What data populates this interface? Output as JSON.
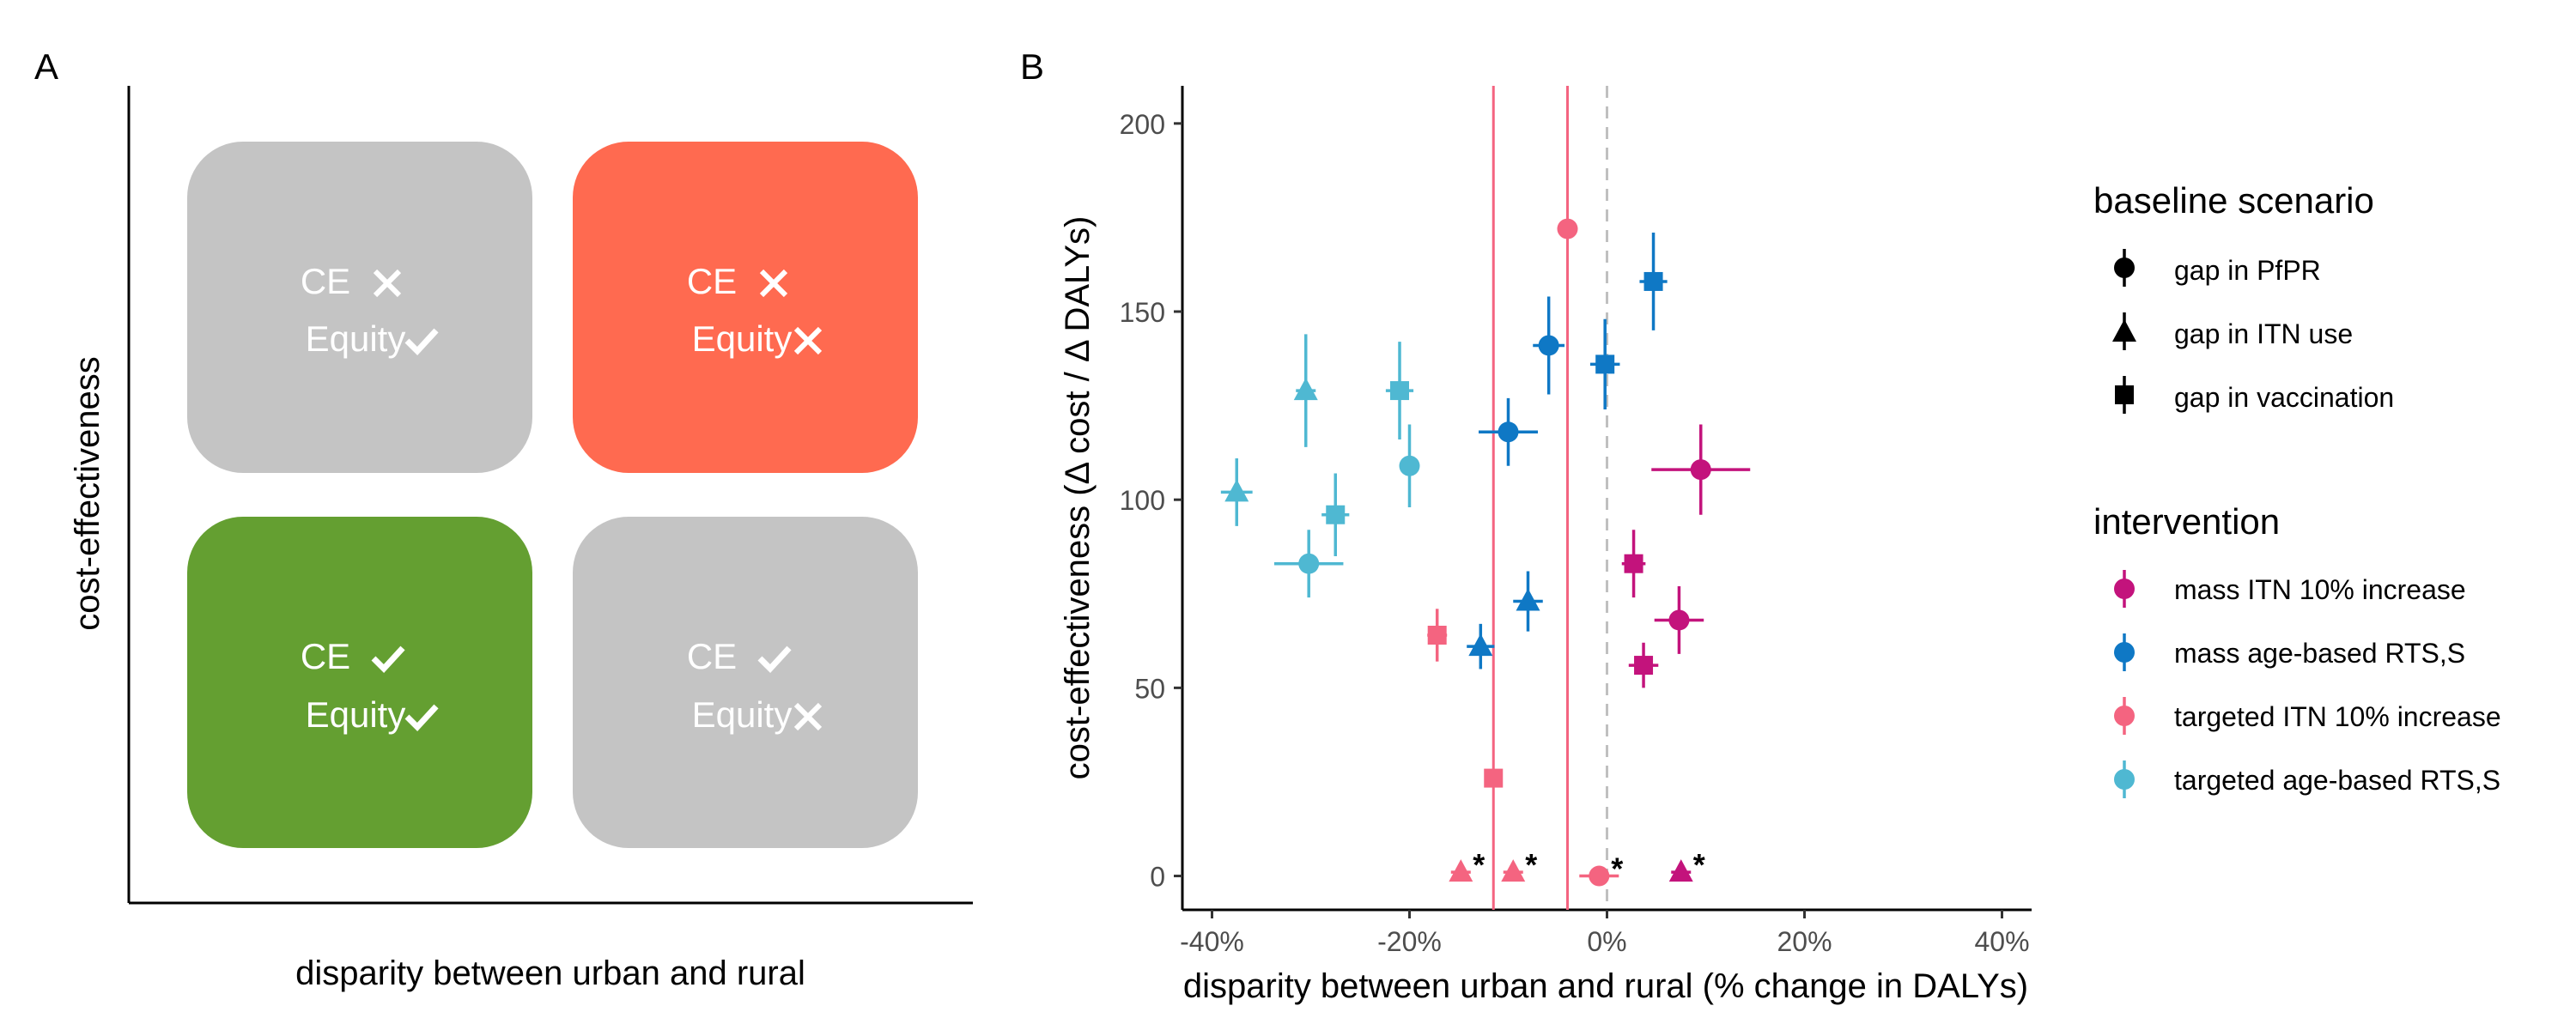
{
  "panel_a": {
    "label": "A",
    "ylabel": "cost-effectiveness",
    "xlabel": "disparity between urban and rural",
    "quadrants": [
      {
        "ce": "CE",
        "ce_mark": "cross",
        "equity": "Equity",
        "equity_mark": "check",
        "color": "#c4c4c4"
      },
      {
        "ce": "CE",
        "ce_mark": "cross",
        "equity": "Equity",
        "equity_mark": "cross",
        "color": "#ff6a50"
      },
      {
        "ce": "CE",
        "ce_mark": "check",
        "equity": "Equity",
        "equity_mark": "check",
        "color": "#649f31"
      },
      {
        "ce": "CE",
        "ce_mark": "check",
        "equity": "Equity",
        "equity_mark": "cross",
        "color": "#c4c4c4"
      }
    ]
  },
  "panel_b": {
    "label": "B",
    "xticks": [
      "-40%",
      "-20%",
      "0%",
      "20%",
      "40%"
    ],
    "yticks": [
      "0",
      "50",
      "100",
      "150",
      "200"
    ],
    "legend": {
      "baseline_title": "baseline scenario",
      "baseline_items": [
        {
          "label": "gap in PfPR",
          "shape": "circle"
        },
        {
          "label": "gap in ITN use",
          "shape": "triangle"
        },
        {
          "label": "gap in vaccination",
          "shape": "square"
        }
      ],
      "intervention_title": "intervention",
      "intervention_items": [
        {
          "label": "mass ITN 10% increase",
          "color": "#c3137c"
        },
        {
          "label": "mass age-based RTS,S",
          "color": "#0f78c5"
        },
        {
          "label": "targeted ITN 10% increase",
          "color": "#f46480"
        },
        {
          "label": "targeted age-based RTS,S",
          "color": "#4fb8d2"
        }
      ]
    },
    "annotation": "*"
  },
  "chart_data": {
    "type": "scatter",
    "xlabel": "disparity between urban and rural (% change in DALYs)",
    "ylabel": "cost-effectiveness (Δ cost / Δ DALYs)",
    "xlim": [
      -43,
      43
    ],
    "ylim": [
      -9,
      210
    ],
    "x_unit": "%",
    "grid": false,
    "legend_position": "right",
    "reference_lines": [
      {
        "orientation": "vertical",
        "x": 0,
        "style": "dashed",
        "color": "#c0c0c0"
      },
      {
        "orientation": "vertical",
        "x": -11.5,
        "style": "solid",
        "color": "#f46480"
      },
      {
        "orientation": "vertical",
        "x": -4,
        "style": "solid",
        "color": "#f46480"
      }
    ],
    "series": [
      {
        "name": "mass ITN 10% increase",
        "color": "#c3137c",
        "points": [
          {
            "shape": "circle",
            "x": 9.5,
            "y": 108,
            "xerr": 5,
            "yerr": 12
          },
          {
            "shape": "circle",
            "x": 7.3,
            "y": 68,
            "xerr": 2.5,
            "yerr": 9
          },
          {
            "shape": "square",
            "x": 2.7,
            "y": 83,
            "xerr": 1.2,
            "yerr": 9
          },
          {
            "shape": "square",
            "x": 3.7,
            "y": 56,
            "xerr": 1.5,
            "yerr": 6
          },
          {
            "shape": "triangle",
            "x": 7.5,
            "y": 1,
            "xerr": 1,
            "yerr": 0,
            "flag": "*"
          }
        ]
      },
      {
        "name": "mass age-based RTS,S",
        "color": "#0f78c5",
        "points": [
          {
            "shape": "circle",
            "x": -10,
            "y": 118,
            "xerr": 3,
            "yerr": 9
          },
          {
            "shape": "circle",
            "x": -5.9,
            "y": 141,
            "xerr": 1.6,
            "yerr": 13
          },
          {
            "shape": "square",
            "x": -0.2,
            "y": 136,
            "xerr": 1.5,
            "yerr": 12
          },
          {
            "shape": "square",
            "x": 4.7,
            "y": 158,
            "xerr": 1.4,
            "yerr": 13
          },
          {
            "shape": "triangle",
            "x": -8,
            "y": 73,
            "xerr": 1.5,
            "yerr": 8
          },
          {
            "shape": "triangle",
            "x": -12.8,
            "y": 61,
            "xerr": 1.4,
            "yerr": 6
          }
        ]
      },
      {
        "name": "targeted ITN 10% increase",
        "color": "#f46480",
        "points": [
          {
            "shape": "circle",
            "x": -4,
            "y": 172,
            "xerr": 0,
            "yerr": 0
          },
          {
            "shape": "square",
            "x": -17.2,
            "y": 64,
            "xerr": 1,
            "yerr": 7
          },
          {
            "shape": "square",
            "x": -11.5,
            "y": 26,
            "xerr": 0,
            "yerr": 0
          },
          {
            "shape": "triangle",
            "x": -14.8,
            "y": 1,
            "xerr": 1,
            "yerr": 0,
            "flag": "*"
          },
          {
            "shape": "triangle",
            "x": -9.5,
            "y": 1,
            "xerr": 1,
            "yerr": 0,
            "flag": "*"
          },
          {
            "shape": "circle",
            "x": -0.8,
            "y": 0,
            "xerr": 2,
            "yerr": 0,
            "flag": "*"
          }
        ]
      },
      {
        "name": "targeted age-based RTS,S",
        "color": "#4fb8d2",
        "points": [
          {
            "shape": "triangle",
            "x": -37.5,
            "y": 102,
            "xerr": 1.6,
            "yerr": 9
          },
          {
            "shape": "triangle",
            "x": -30.5,
            "y": 129,
            "xerr": 1,
            "yerr": 15
          },
          {
            "shape": "square",
            "x": -21,
            "y": 129,
            "xerr": 1.4,
            "yerr": 13
          },
          {
            "shape": "circle",
            "x": -20,
            "y": 109,
            "xerr": 1,
            "yerr": 11
          },
          {
            "shape": "square",
            "x": -27.5,
            "y": 96,
            "xerr": 1.4,
            "yerr": 11
          },
          {
            "shape": "circle",
            "x": -30.2,
            "y": 83,
            "xerr": 3.5,
            "yerr": 9
          }
        ]
      }
    ]
  }
}
